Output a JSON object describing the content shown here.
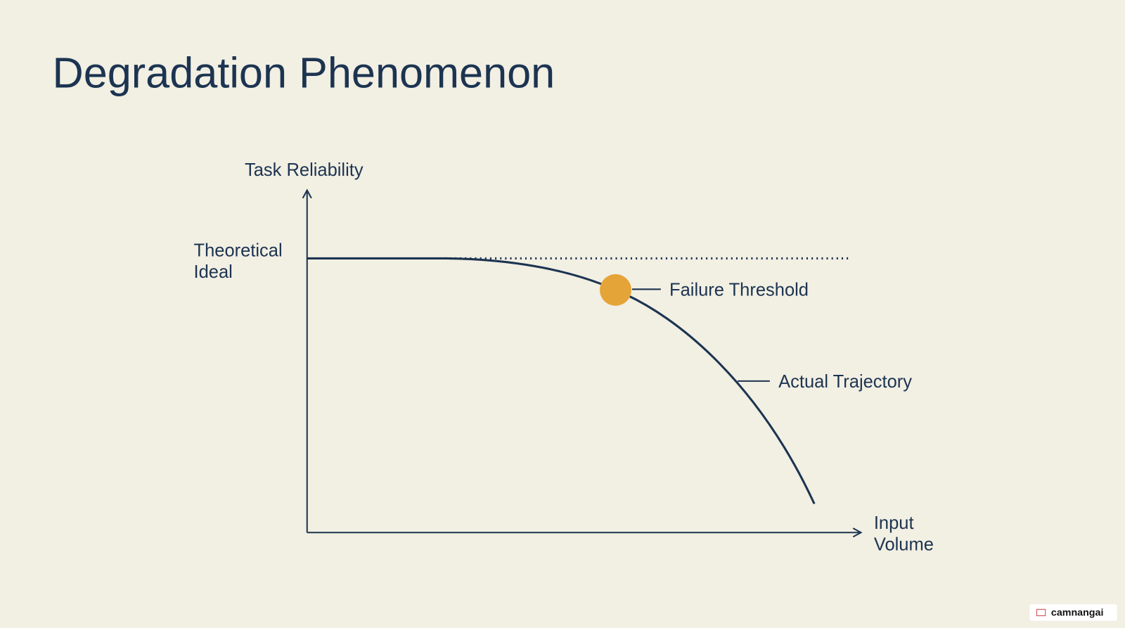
{
  "header": {
    "title": "Degradation Phenomenon"
  },
  "diagram": {
    "y_axis_label": "Task Reliability",
    "ideal_label": [
      "Theoretical",
      "Ideal"
    ],
    "failure_label": "Failure Threshold",
    "trajectory_label": "Actual Trajectory",
    "x_axis_label": [
      "Input",
      "Volume"
    ]
  },
  "watermark": "camnangai"
}
